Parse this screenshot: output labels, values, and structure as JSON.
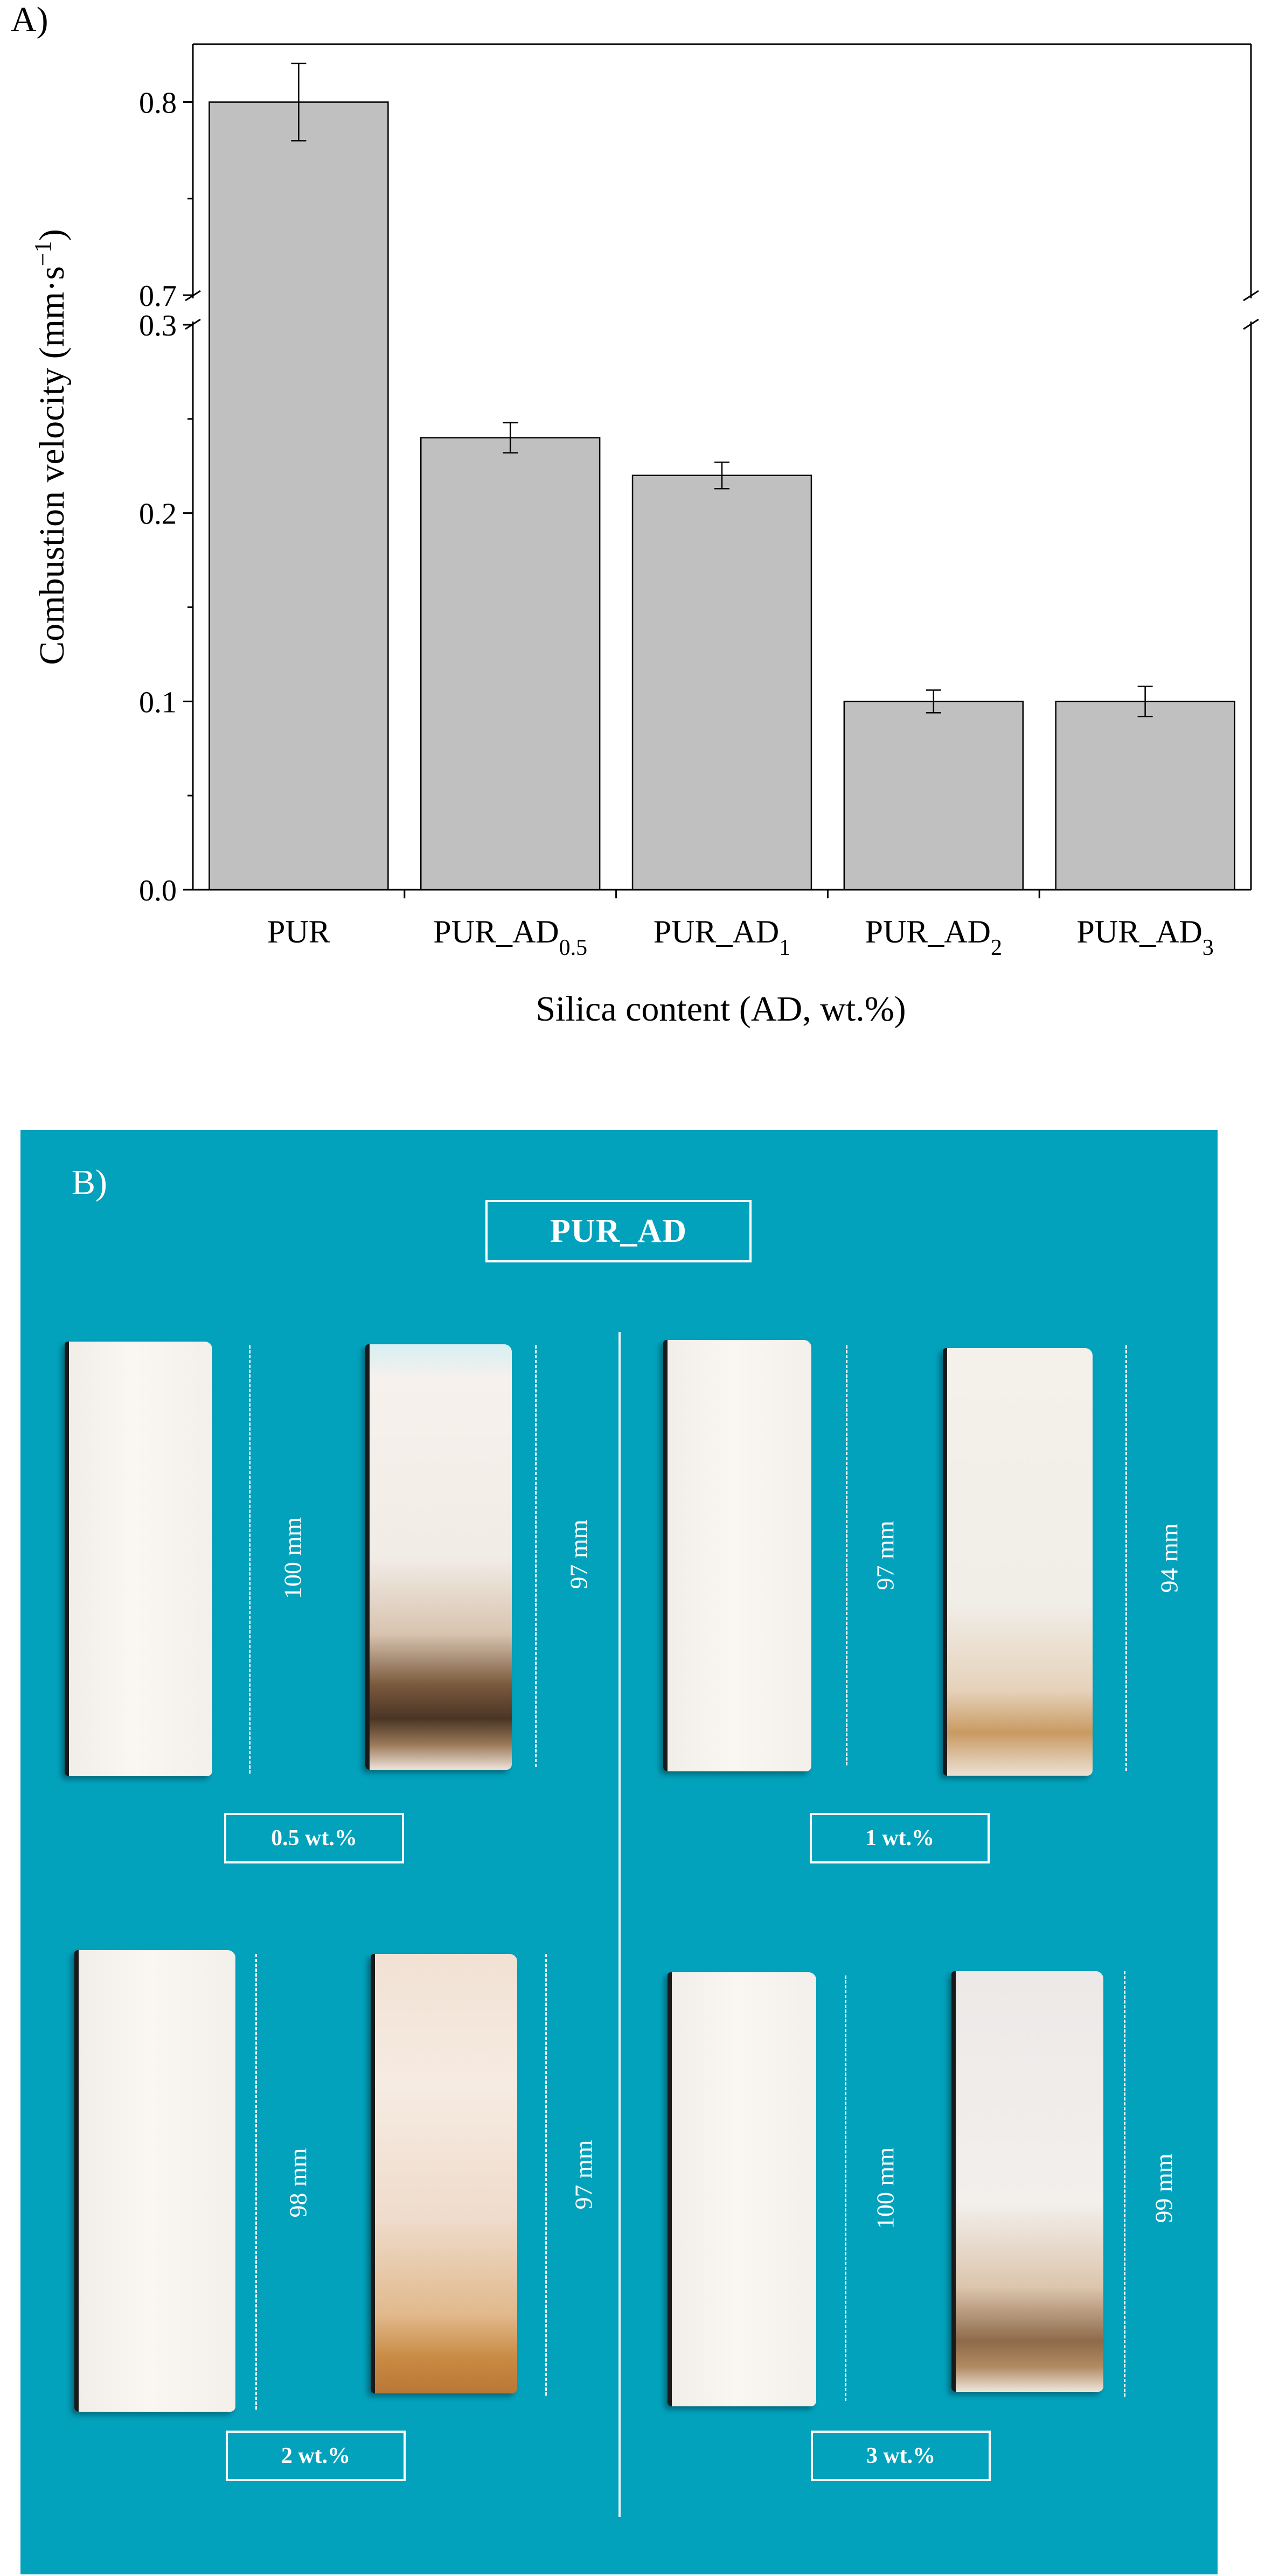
{
  "chart_data": {
    "type": "bar",
    "panel_label": "A)",
    "categories": [
      "PUR",
      "PUR_AD0.5",
      "PUR_AD1",
      "PUR_AD2",
      "PUR_AD3"
    ],
    "category_labels": [
      {
        "base": "PUR",
        "sub": ""
      },
      {
        "base": "PUR_AD",
        "sub": "0.5"
      },
      {
        "base": "PUR_AD",
        "sub": "1"
      },
      {
        "base": "PUR_AD",
        "sub": "2"
      },
      {
        "base": "PUR_AD",
        "sub": "3"
      }
    ],
    "values": [
      0.8,
      0.24,
      0.22,
      0.1,
      0.1
    ],
    "errors": [
      0.02,
      0.008,
      0.007,
      0.006,
      0.008
    ],
    "xlabel": "Silica content (AD, wt.%)",
    "ylabel": "Combustion velocity (mm·s",
    "ylabel_sup": "−1",
    "ylabel_end": ")",
    "ylim_lower": [
      0,
      0.3
    ],
    "ylim_upper": [
      0.7,
      0.83
    ],
    "axis_break": true,
    "yticks_lower": [
      "0.0",
      "0.1",
      "0.2",
      "0.3"
    ],
    "yticks_upper": [
      "0.7",
      "0.8"
    ],
    "bar_color": "#c0c0c0",
    "grid": false
  },
  "panel_b": {
    "label": "B)",
    "title": "PUR_AD",
    "background_color": "#02a2bd",
    "groups": [
      {
        "tag": "0.5 wt.%",
        "lengths": [
          "100 mm",
          "97 mm"
        ]
      },
      {
        "tag": "1 wt.%",
        "lengths": [
          "97 mm",
          "94 mm"
        ]
      },
      {
        "tag": "2 wt.%",
        "lengths": [
          "98 mm",
          "97 mm"
        ]
      },
      {
        "tag": "3 wt.%",
        "lengths": [
          "100 mm",
          "99 mm"
        ]
      }
    ]
  }
}
